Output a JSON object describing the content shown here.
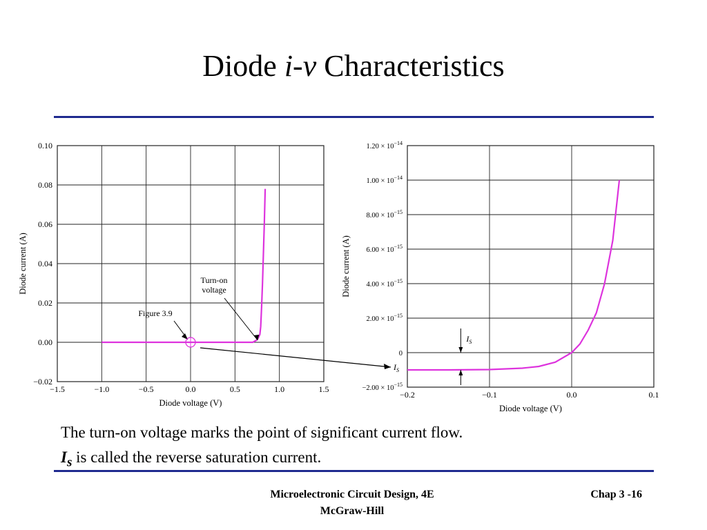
{
  "slide": {
    "title_prefix": "Diode ",
    "title_italic": "i-v",
    "title_suffix": " Characteristics",
    "line1": "The turn-on voltage marks the point of significant current flow.",
    "line2_symbol": "I",
    "line2_subscript": "s",
    "line2_rest": " is called the reverse saturation current.",
    "footer_book": "Microelectronic Circuit Design, 4E",
    "footer_publisher": "McGraw-Hill",
    "footer_chapter": "Chap 3 -16",
    "rule_color": "#1f2a8f"
  },
  "chart_data": [
    {
      "type": "line",
      "xlabel": "Diode voltage (V)",
      "ylabel": "Diode current (A)",
      "xlim": [
        -1.5,
        1.5
      ],
      "ylim": [
        -0.02,
        0.1
      ],
      "xticks": [
        "−1.5",
        "−1.0",
        "−0.5",
        "0.0",
        "0.5",
        "1.0",
        "1.5"
      ],
      "yticks": [
        "−0.02",
        "0.00",
        "0.02",
        "0.04",
        "0.06",
        "0.08",
        "0.10"
      ],
      "grid": true,
      "series_color": "#dd33dd",
      "x": [
        -1.0,
        -0.5,
        0.0,
        0.5,
        0.7,
        0.74,
        0.76,
        0.78,
        0.79,
        0.8,
        0.81,
        0.82,
        0.83,
        0.84
      ],
      "y": [
        0.0,
        0.0,
        0.0,
        0.0,
        0.0,
        0.001,
        0.002,
        0.004,
        0.008,
        0.018,
        0.03,
        0.045,
        0.06,
        0.078
      ],
      "annotations": [
        {
          "text_lines": [
            "Turn-on",
            "voltage"
          ],
          "target": [
            0.74,
            0.0
          ]
        },
        {
          "text": "Figure 3.9",
          "target": [
            0.0,
            0.0
          ]
        }
      ]
    },
    {
      "type": "line",
      "xlabel": "Diode voltage (V)",
      "ylabel": "Diode current (A)",
      "xlim": [
        -0.2,
        0.1
      ],
      "ylim": [
        -2e-15,
        1.2e-14
      ],
      "xticks": [
        "−0.2",
        "−0.1",
        "0.0",
        "0.1"
      ],
      "yticks": [
        {
          "mantissa": "−2.00",
          "exp": "−15"
        },
        {
          "mantissa": "0",
          "exp": ""
        },
        {
          "mantissa": "2.00",
          "exp": "−15"
        },
        {
          "mantissa": "4.00",
          "exp": "−15"
        },
        {
          "mantissa": "6.00",
          "exp": "−15"
        },
        {
          "mantissa": "8.00",
          "exp": "−15"
        },
        {
          "mantissa": "1.00",
          "exp": "−14"
        },
        {
          "mantissa": "1.20",
          "exp": "−14"
        }
      ],
      "grid": true,
      "series_color": "#dd33dd",
      "x": [
        -0.2,
        -0.15,
        -0.1,
        -0.06,
        -0.04,
        -0.02,
        0.0,
        0.01,
        0.02,
        0.03,
        0.04,
        0.05,
        0.058
      ],
      "y": [
        -1e-15,
        -1e-15,
        -9.8e-16,
        -9e-16,
        -8e-16,
        -5.5e-16,
        0.0,
        5e-16,
        1.3e-15,
        2.3e-15,
        4e-15,
        6.5e-15,
        1e-14
      ],
      "annotations": [
        {
          "text": "I",
          "sub": "S",
          "kind": "bracket",
          "x": -0.135
        },
        {
          "text": "I",
          "sub": "S",
          "kind": "axis-label"
        }
      ]
    }
  ]
}
